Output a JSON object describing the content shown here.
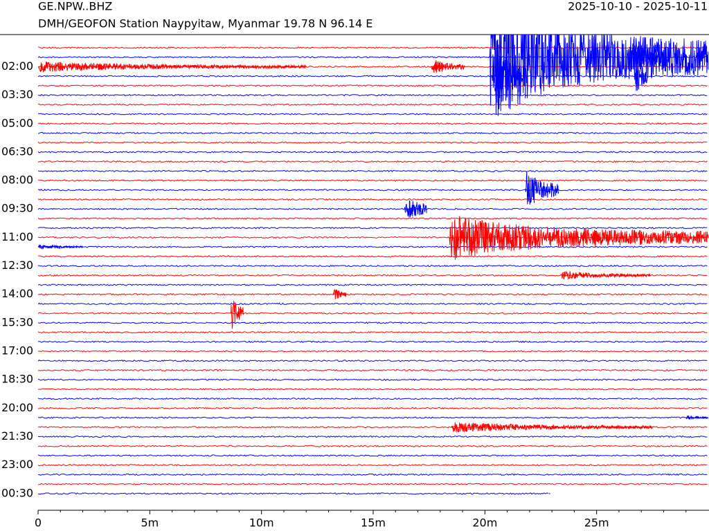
{
  "chart_data": {
    "type": "helicorder",
    "title": "GE.NPW..BHZ",
    "subtitle": "DMH/GEOFON Station Naypyitaw, Myanmar  19.78 N 96.14 E",
    "date_range": "2025-10-10 - 2025-10-11",
    "categories": [
      null,
      null,
      "02:00",
      null,
      null,
      "03:30",
      null,
      null,
      "05:00",
      null,
      null,
      "06:30",
      null,
      null,
      "08:00",
      null,
      null,
      "09:30",
      null,
      null,
      "11:00",
      null,
      null,
      "12:30",
      null,
      null,
      "14:00",
      null,
      null,
      "15:30",
      null,
      null,
      "17:00",
      null,
      null,
      "18:30",
      null,
      null,
      "20:00",
      null,
      null,
      "21:30",
      null,
      null,
      "23:00",
      null,
      null,
      "00:30"
    ],
    "colors": [
      "#ff0000",
      "#0000ff"
    ],
    "xlim": [
      0,
      30
    ],
    "xticks": [
      0,
      {
        "value": 5,
        "label": "5m"
      },
      {
        "value": 10,
        "label": "10m"
      },
      {
        "value": 15,
        "label": "15m"
      },
      {
        "value": 20,
        "label": "20m"
      },
      {
        "value": 25,
        "label": "25m"
      }
    ],
    "xminorticks": [
      1,
      2,
      3,
      4,
      6,
      7,
      8,
      9,
      11,
      12,
      13,
      14,
      16,
      17,
      18,
      19,
      21,
      22,
      23,
      24,
      26,
      27,
      28,
      29
    ],
    "last_sample": 22.9,
    "events": [
      {
        "row": 2,
        "x": 0,
        "amplitude": 0.6,
        "duration": 12
      },
      {
        "row": 2,
        "x": 17.6,
        "amplitude": 1,
        "duration": 1.5
      },
      {
        "row": 1,
        "x": 20.2,
        "amplitude": 7,
        "duration": 9.8
      },
      {
        "row": 3,
        "x": 20.3,
        "amplitude": 4,
        "duration": 1.6
      },
      {
        "row": 1,
        "x": 26.6,
        "amplitude": 3,
        "duration": 1.5
      },
      {
        "row": 3,
        "x": 26.7,
        "amplitude": 3,
        "duration": 0.6
      },
      {
        "row": 15,
        "x": 21.8,
        "amplitude": 2.5,
        "duration": 1.5
      },
      {
        "row": 17,
        "x": 16.4,
        "amplitude": 2,
        "duration": 1
      },
      {
        "row": 20,
        "x": 18.4,
        "amplitude": 2.5,
        "duration": 11.6
      },
      {
        "row": 20,
        "x": 24.8,
        "amplitude": 2,
        "duration": 0.6
      },
      {
        "row": 21,
        "x": 0,
        "amplitude": 0.3,
        "duration": 2
      },
      {
        "row": 24,
        "x": 23.4,
        "amplitude": 0.5,
        "duration": 4
      },
      {
        "row": 26,
        "x": 13.2,
        "amplitude": 1,
        "duration": 0.6
      },
      {
        "row": 28,
        "x": 8.6,
        "amplitude": 2.5,
        "duration": 0.6
      },
      {
        "row": 39,
        "x": 29,
        "amplitude": 0.3,
        "duration": 1
      },
      {
        "row": 40,
        "x": 18.5,
        "amplitude": 0.6,
        "duration": 9
      }
    ]
  }
}
